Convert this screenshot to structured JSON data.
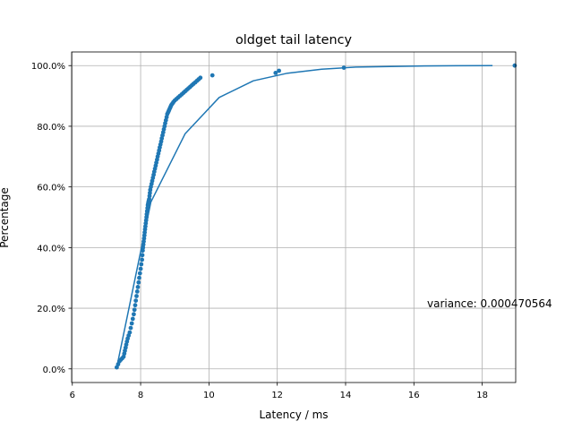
{
  "chart_data": {
    "type": "line",
    "title": "oldget tail latency",
    "xlabel": "Latency / ms",
    "ylabel": "Percentage",
    "xlim": [
      5.98,
      18.98
    ],
    "ylim": [
      -4.5,
      104.5
    ],
    "xticks": [
      6,
      8,
      10,
      12,
      14,
      16,
      18
    ],
    "xtick_labels": [
      "6",
      "8",
      "10",
      "12",
      "14",
      "16",
      "18"
    ],
    "yticks": [
      0,
      20,
      40,
      60,
      80,
      100
    ],
    "ytick_labels": [
      "0.0%",
      "20.0%",
      "40.0%",
      "60.0%",
      "80.0%",
      "100.0%"
    ],
    "grid": true,
    "colors": {
      "series": "#1f77b4"
    },
    "annotation": "variance: 0.000470564",
    "series": [
      {
        "kind": "line",
        "x": [
          7.3,
          8.3,
          9.3,
          10.3,
          11.3,
          12.3,
          13.3,
          14.3,
          16.3,
          18.3
        ],
        "y": [
          0.5,
          55,
          77.5,
          89.5,
          95,
          97.5,
          98.8,
          99.5,
          99.9,
          100
        ]
      },
      {
        "kind": "scatter",
        "x": [
          7.3,
          7.34,
          7.38,
          7.42,
          7.46,
          7.5,
          7.52,
          7.54,
          7.56,
          7.58,
          7.6,
          7.62,
          7.65,
          7.68,
          7.71,
          7.74,
          7.77,
          7.8,
          7.82,
          7.84,
          7.86,
          7.88,
          7.9,
          7.92,
          7.94,
          7.96,
          7.98,
          8.0,
          8.02,
          8.04,
          8.05,
          8.06,
          8.07,
          8.08,
          8.09,
          8.1,
          8.11,
          8.12,
          8.13,
          8.14,
          8.15,
          8.16,
          8.17,
          8.18,
          8.19,
          8.2,
          8.21,
          8.22,
          8.23,
          8.24,
          8.25,
          8.26,
          8.27,
          8.28,
          8.3,
          8.32,
          8.34,
          8.36,
          8.38,
          8.4,
          8.42,
          8.44,
          8.46,
          8.48,
          8.5,
          8.52,
          8.54,
          8.56,
          8.58,
          8.6,
          8.62,
          8.64,
          8.66,
          8.68,
          8.7,
          8.72,
          8.74,
          8.76,
          8.78,
          8.8,
          8.82,
          8.84,
          8.86,
          8.88,
          8.9,
          8.93,
          8.96,
          9.0,
          9.05,
          9.1,
          9.15,
          9.2,
          9.25,
          9.3,
          9.35,
          9.4,
          9.45,
          9.5,
          9.55,
          9.6,
          9.65,
          9.7,
          9.75,
          10.1,
          11.95,
          12.05,
          13.95,
          18.95
        ],
        "y": [
          0.5,
          1.5,
          2.5,
          3.0,
          3.5,
          4.0,
          5.0,
          6.0,
          7.0,
          8.0,
          9.0,
          10.0,
          11.0,
          12.0,
          13.5,
          15.0,
          16.5,
          18.0,
          19.5,
          21.0,
          22.5,
          24.0,
          25.5,
          27.0,
          28.5,
          30.0,
          31.5,
          33.0,
          34.5,
          36.0,
          37.5,
          39.0,
          40.0,
          41.0,
          42.0,
          43.0,
          44.0,
          45.0,
          46.0,
          47.0,
          48.0,
          49.0,
          50.0,
          51.0,
          52.0,
          53.0,
          54.0,
          54.5,
          55.0,
          55.5,
          56.0,
          57.0,
          58.0,
          59.0,
          60.0,
          61.0,
          62.0,
          63.0,
          64.0,
          65.0,
          66.0,
          67.0,
          68.0,
          69.0,
          70.0,
          71.0,
          72.0,
          73.0,
          74.0,
          75.0,
          76.0,
          77.0,
          78.0,
          79.0,
          80.0,
          81.0,
          82.0,
          83.0,
          84.0,
          84.5,
          85.0,
          85.5,
          86.0,
          86.5,
          87.0,
          87.5,
          88.0,
          88.5,
          89.0,
          89.5,
          90.0,
          90.5,
          91.0,
          91.5,
          92.0,
          92.5,
          93.0,
          93.5,
          94.0,
          94.5,
          95.0,
          95.5,
          96.0,
          96.8,
          97.6,
          98.3,
          99.3,
          100.0
        ]
      }
    ]
  }
}
